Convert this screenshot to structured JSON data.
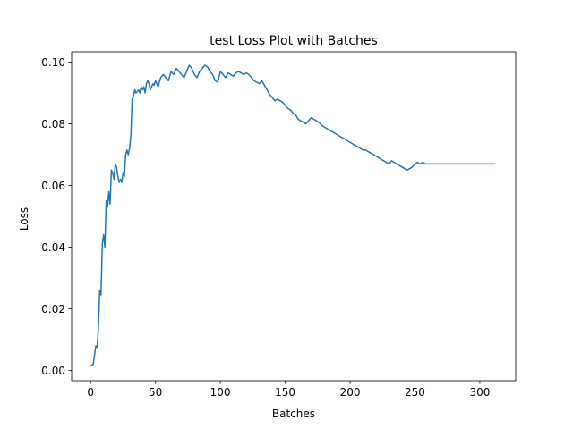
{
  "chart_data": {
    "type": "line",
    "title": "test Loss Plot with Batches",
    "xlabel": "Batches",
    "ylabel": "Loss",
    "xlim": [
      -14.65,
      327.65
    ],
    "ylim": [
      -0.00336,
      0.10336
    ],
    "xticks": [
      0,
      50,
      100,
      150,
      200,
      250,
      300
    ],
    "xtick_labels": [
      "0",
      "50",
      "100",
      "150",
      "200",
      "250",
      "300"
    ],
    "yticks": [
      0.0,
      0.02,
      0.04,
      0.06,
      0.08,
      0.1
    ],
    "ytick_labels": [
      "0.00",
      "0.02",
      "0.04",
      "0.06",
      "0.08",
      "0.10"
    ],
    "grid": false,
    "line_color": "#1f77b4",
    "series": [
      {
        "x": [
          0,
          2,
          4,
          5,
          6,
          7,
          8,
          9,
          10,
          11,
          12,
          13,
          14,
          15,
          16,
          17,
          18,
          19,
          20,
          21,
          22,
          23,
          24,
          25,
          26,
          27,
          28,
          29,
          30,
          31,
          32,
          33,
          34,
          35,
          36,
          37,
          38,
          39,
          40,
          41,
          42,
          43,
          44,
          45,
          46,
          47,
          48,
          49,
          50,
          52,
          54,
          56,
          58,
          60,
          62,
          64,
          66,
          68,
          70,
          72,
          74,
          76,
          78,
          80,
          82,
          84,
          86,
          88,
          90,
          92,
          94,
          96,
          98,
          100,
          102,
          104,
          106,
          108,
          110,
          112,
          114,
          116,
          118,
          120,
          122,
          124,
          126,
          128,
          130,
          132,
          134,
          136,
          138,
          140,
          142,
          144,
          146,
          148,
          150,
          152,
          154,
          156,
          158,
          160,
          162,
          164,
          166,
          168,
          170,
          172,
          174,
          176,
          178,
          180,
          182,
          184,
          186,
          188,
          190,
          192,
          194,
          196,
          198,
          200,
          202,
          204,
          206,
          208,
          210,
          212,
          214,
          216,
          218,
          220,
          222,
          224,
          226,
          228,
          230,
          232,
          234,
          236,
          238,
          240,
          242,
          244,
          246,
          248,
          250,
          252,
          254,
          256,
          258,
          260,
          262,
          264,
          266,
          268,
          270,
          272,
          274,
          276,
          278,
          280,
          282,
          284,
          286,
          288,
          290,
          292,
          294,
          296,
          298,
          300,
          302,
          304,
          306,
          308,
          310,
          312
        ],
        "y": [
          0.0015,
          0.002,
          0.008,
          0.0075,
          0.014,
          0.026,
          0.0245,
          0.041,
          0.044,
          0.04,
          0.055,
          0.053,
          0.058,
          0.054,
          0.065,
          0.064,
          0.062,
          0.067,
          0.066,
          0.063,
          0.061,
          0.062,
          0.061,
          0.064,
          0.063,
          0.07,
          0.0715,
          0.07,
          0.072,
          0.076,
          0.088,
          0.089,
          0.091,
          0.09,
          0.0905,
          0.091,
          0.09,
          0.092,
          0.091,
          0.092,
          0.09,
          0.093,
          0.094,
          0.093,
          0.091,
          0.092,
          0.093,
          0.0925,
          0.094,
          0.092,
          0.095,
          0.096,
          0.095,
          0.094,
          0.097,
          0.096,
          0.098,
          0.097,
          0.096,
          0.095,
          0.097,
          0.099,
          0.098,
          0.096,
          0.095,
          0.097,
          0.098,
          0.099,
          0.0985,
          0.097,
          0.096,
          0.094,
          0.0935,
          0.097,
          0.096,
          0.095,
          0.0965,
          0.096,
          0.0955,
          0.0965,
          0.097,
          0.0965,
          0.096,
          0.0965,
          0.096,
          0.095,
          0.094,
          0.0935,
          0.093,
          0.094,
          0.0925,
          0.091,
          0.0895,
          0.0885,
          0.0875,
          0.088,
          0.0875,
          0.087,
          0.086,
          0.085,
          0.0845,
          0.0835,
          0.083,
          0.0815,
          0.081,
          0.0805,
          0.08,
          0.081,
          0.082,
          0.0815,
          0.081,
          0.0805,
          0.0795,
          0.079,
          0.0785,
          0.078,
          0.0775,
          0.077,
          0.0765,
          0.076,
          0.0755,
          0.075,
          0.0745,
          0.074,
          0.0735,
          0.073,
          0.0725,
          0.072,
          0.0715,
          0.0715,
          0.071,
          0.0705,
          0.07,
          0.0695,
          0.069,
          0.0685,
          0.068,
          0.0675,
          0.067,
          0.068,
          0.0675,
          0.067,
          0.0665,
          0.066,
          0.0655,
          0.065,
          0.0655,
          0.066,
          0.067,
          0.0675,
          0.067,
          0.0675,
          0.067,
          0.067,
          0.067,
          0.067,
          0.067,
          0.067,
          0.067,
          0.067,
          0.067,
          0.067,
          0.067,
          0.067,
          0.067,
          0.067,
          0.067,
          0.067,
          0.067,
          0.067,
          0.067,
          0.067,
          0.067,
          0.067,
          0.067,
          0.067,
          0.067,
          0.067,
          0.067,
          0.067
        ]
      }
    ]
  }
}
